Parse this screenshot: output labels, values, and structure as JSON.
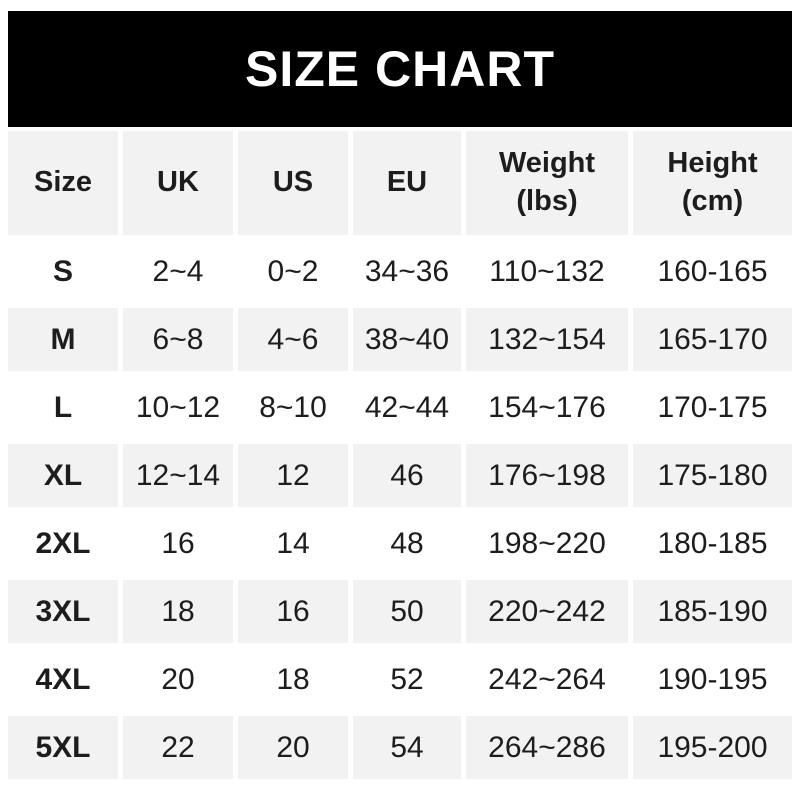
{
  "banner": {
    "title": "SIZE CHART"
  },
  "colors": {
    "banner_bg": "#000000",
    "banner_text": "#ffffff",
    "row_alt_bg": "#f2f2f2",
    "text": "#1d1d1d"
  },
  "table": {
    "columns": [
      {
        "label": "Size",
        "sub": ""
      },
      {
        "label": "UK",
        "sub": ""
      },
      {
        "label": "US",
        "sub": ""
      },
      {
        "label": "EU",
        "sub": ""
      },
      {
        "label": "Weight",
        "sub": "(lbs)"
      },
      {
        "label": "Height",
        "sub": "(cm)"
      }
    ],
    "rows": [
      {
        "size": "S",
        "uk": "2~4",
        "us": "0~2",
        "eu": "34~36",
        "weight": "110~132",
        "height": "160-165"
      },
      {
        "size": "M",
        "uk": "6~8",
        "us": "4~6",
        "eu": "38~40",
        "weight": "132~154",
        "height": "165-170"
      },
      {
        "size": "L",
        "uk": "10~12",
        "us": "8~10",
        "eu": "42~44",
        "weight": "154~176",
        "height": "170-175"
      },
      {
        "size": "XL",
        "uk": "12~14",
        "us": "12",
        "eu": "46",
        "weight": "176~198",
        "height": "175-180"
      },
      {
        "size": "2XL",
        "uk": "16",
        "us": "14",
        "eu": "48",
        "weight": "198~220",
        "height": "180-185"
      },
      {
        "size": "3XL",
        "uk": "18",
        "us": "16",
        "eu": "50",
        "weight": "220~242",
        "height": "185-190"
      },
      {
        "size": "4XL",
        "uk": "20",
        "us": "18",
        "eu": "52",
        "weight": "242~264",
        "height": "190-195"
      },
      {
        "size": "5XL",
        "uk": "22",
        "us": "20",
        "eu": "54",
        "weight": "264~286",
        "height": "195-200"
      }
    ]
  },
  "chart_data": {
    "type": "table",
    "title": "SIZE CHART",
    "columns": [
      "Size",
      "UK",
      "US",
      "EU",
      "Weight (lbs)",
      "Height (cm)"
    ],
    "rows": [
      [
        "S",
        "2~4",
        "0~2",
        "34~36",
        "110~132",
        "160-165"
      ],
      [
        "M",
        "6~8",
        "4~6",
        "38~40",
        "132~154",
        "165-170"
      ],
      [
        "L",
        "10~12",
        "8~10",
        "42~44",
        "154~176",
        "170-175"
      ],
      [
        "XL",
        "12~14",
        "12",
        "46",
        "176~198",
        "175-180"
      ],
      [
        "2XL",
        "16",
        "14",
        "48",
        "198~220",
        "180-185"
      ],
      [
        "3XL",
        "18",
        "16",
        "50",
        "220~242",
        "185-190"
      ],
      [
        "4XL",
        "20",
        "18",
        "52",
        "242~264",
        "190-195"
      ],
      [
        "5XL",
        "22",
        "20",
        "54",
        "264~286",
        "195-200"
      ]
    ],
    "layout_hints": {
      "alternating_row_shading": [
        "header",
        "M",
        "XL",
        "3XL",
        "5XL"
      ],
      "range_separator_body": "~",
      "range_separator_height": "-"
    }
  }
}
